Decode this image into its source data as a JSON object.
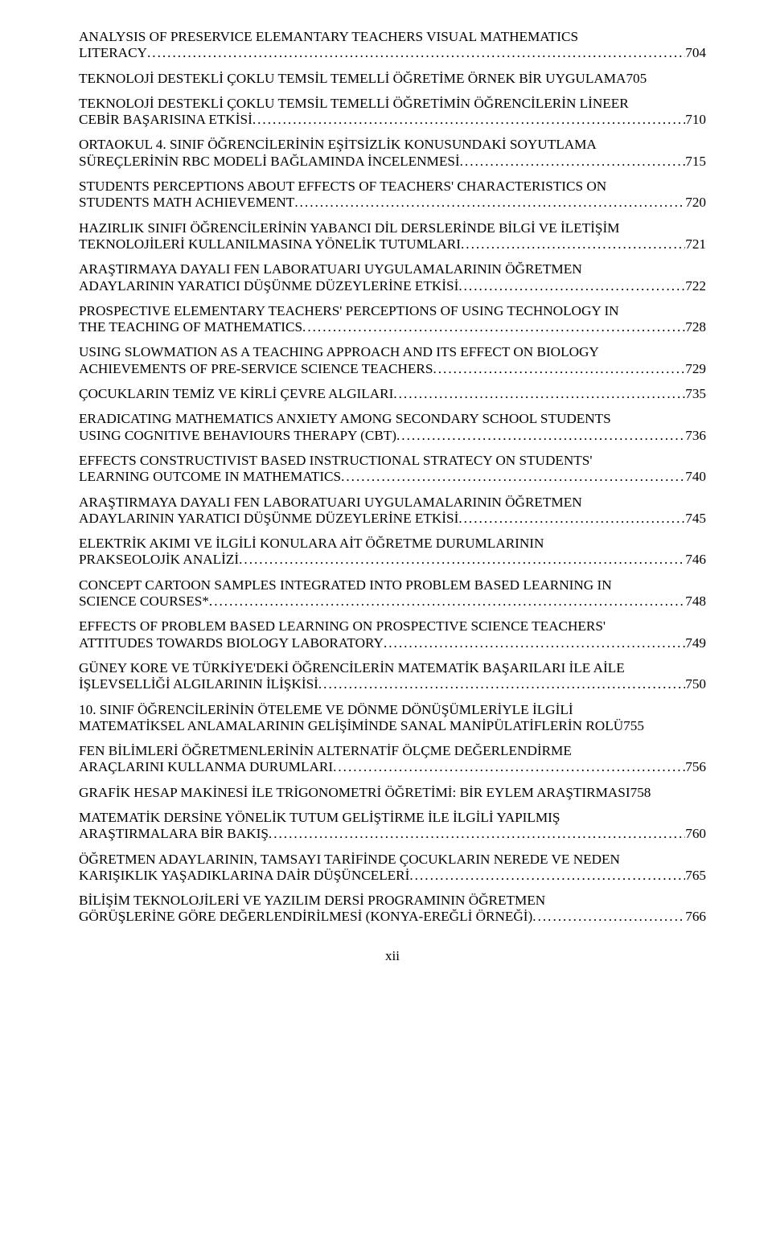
{
  "entries": [
    {
      "title_lines": [
        "ANALYSIS OF PRESERVICE ELEMANTARY TEACHERS VISUAL MATHEMATICS",
        "LITERACY"
      ],
      "page": "704"
    },
    {
      "title_lines": [
        "TEKNOLOJİ DESTEKLİ ÇOKLU TEMSİL TEMELLİ ÖĞRETİME ÖRNEK BİR UYGULAMA"
      ],
      "page": "705",
      "nodots": true
    },
    {
      "title_lines": [
        "TEKNOLOJİ DESTEKLİ ÇOKLU TEMSİL TEMELLİ ÖĞRETİMİN ÖĞRENCİLERİN LİNEER",
        "CEBİR BAŞARISINA ETKİSİ"
      ],
      "page": "710"
    },
    {
      "title_lines": [
        "ORTAOKUL 4. SINIF ÖĞRENCİLERİNİN EŞİTSİZLİK KONUSUNDAKİ SOYUTLAMA",
        "SÜREÇLERİNİN RBC MODELİ BAĞLAMINDA İNCELENMESİ"
      ],
      "page": "715"
    },
    {
      "title_lines": [
        "STUDENTS PERCEPTIONS ABOUT EFFECTS OF TEACHERS' CHARACTERISTICS ON",
        "STUDENTS MATH ACHIEVEMENT"
      ],
      "page": "720"
    },
    {
      "title_lines": [
        "HAZIRLIK SINIFI ÖĞRENCİLERİNİN YABANCI DİL DERSLERİNDE BİLGİ VE İLETİŞİM",
        "TEKNOLOJİLERİ KULLANILMASINA YÖNELİK TUTUMLARI"
      ],
      "page": "721"
    },
    {
      "title_lines": [
        "ARAŞTIRMAYA DAYALI FEN LABORATUARI UYGULAMALARININ ÖĞRETMEN",
        "ADAYLARININ YARATICI DÜŞÜNME DÜZEYLERİNE ETKİSİ"
      ],
      "page": "722"
    },
    {
      "title_lines": [
        "PROSPECTIVE ELEMENTARY TEACHERS' PERCEPTIONS OF USING TECHNOLOGY IN",
        "THE TEACHING OF MATHEMATICS"
      ],
      "page": "728"
    },
    {
      "title_lines": [
        "USING SLOWMATION AS A TEACHING APPROACH AND ITS EFFECT ON BIOLOGY",
        "ACHIEVEMENTS OF PRE-SERVICE SCIENCE TEACHERS"
      ],
      "page": "729"
    },
    {
      "title_lines": [
        "ÇOCUKLARIN TEMİZ VE KİRLİ ÇEVRE ALGILARI"
      ],
      "page": "735"
    },
    {
      "title_lines": [
        "ERADICATING MATHEMATICS ANXIETY AMONG SECONDARY SCHOOL STUDENTS",
        "USING COGNITIVE BEHAVIOURS THERAPY (CBT)"
      ],
      "page": "736"
    },
    {
      "title_lines": [
        "EFFECTS CONSTRUCTIVIST BASED INSTRUCTIONAL STRATECY ON STUDENTS'",
        "LEARNING OUTCOME IN MATHEMATICS"
      ],
      "page": "740"
    },
    {
      "title_lines": [
        "ARAŞTIRMAYA DAYALI FEN LABORATUARI UYGULAMALARININ ÖĞRETMEN",
        "ADAYLARININ YARATICI DÜŞÜNME DÜZEYLERİNE ETKİSİ"
      ],
      "page": "745"
    },
    {
      "title_lines": [
        "ELEKTRİK AKIMI VE İLGİLİ KONULARA AİT ÖĞRETME DURUMLARININ",
        "PRAKSEOLOJİK ANALİZİ"
      ],
      "page": "746"
    },
    {
      "title_lines": [
        "CONCEPT CARTOON SAMPLES INTEGRATED INTO PROBLEM BASED LEARNING IN",
        "SCIENCE COURSES*"
      ],
      "page": "748"
    },
    {
      "title_lines": [
        "EFFECTS OF PROBLEM BASED LEARNING ON PROSPECTIVE SCIENCE TEACHERS'",
        "ATTITUDES TOWARDS BIOLOGY LABORATORY"
      ],
      "page": "749"
    },
    {
      "title_lines": [
        "GÜNEY KORE VE TÜRKİYE'DEKİ ÖĞRENCİLERİN MATEMATİK BAŞARILARI İLE AİLE",
        "İŞLEVSELLİĞİ ALGILARININ İLİŞKİSİ"
      ],
      "page": "750"
    },
    {
      "title_lines": [
        "10. SINIF ÖĞRENCİLERİNİN ÖTELEME VE DÖNME DÖNÜŞÜMLERİYLE İLGİLİ",
        "MATEMATİKSEL ANLAMALARININ GELİŞİMİNDE SANAL MANİPÜLATİFLERİN ROLÜ"
      ],
      "page": "755",
      "nodots": true
    },
    {
      "title_lines": [
        "FEN BİLİMLERİ ÖĞRETMENLERİNİN ALTERNATİF ÖLÇME DEĞERLENDİRME",
        "ARAÇLARINI KULLANMA DURUMLARI"
      ],
      "page": "756"
    },
    {
      "title_lines": [
        "GRAFİK HESAP MAKİNESİ İLE TRİGONOMETRİ ÖĞRETİMİ: BİR EYLEM ARAŞTIRMASI"
      ],
      "page": "758",
      "nodots": true
    },
    {
      "title_lines": [
        "MATEMATİK DERSİNE YÖNELİK TUTUM GELİŞTİRME İLE İLGİLİ YAPILMIŞ",
        "ARAŞTIRMALARA BİR BAKIŞ"
      ],
      "page": "760"
    },
    {
      "title_lines": [
        "ÖĞRETMEN ADAYLARININ, TAMSAYI TARİFİNDE ÇOCUKLARIN NEREDE VE NEDEN",
        "KARIŞIKLIK YAŞADIKLARINA DAİR DÜŞÜNCELERİ"
      ],
      "page": "765"
    },
    {
      "title_lines": [
        "BİLİŞİM TEKNOLOJİLERİ VE YAZILIM DERSİ PROGRAMININ ÖĞRETMEN",
        "GÖRÜŞLERİNE GÖRE DEĞERLENDİRİLMESİ (KONYA-EREĞLİ ÖRNEĞİ)"
      ],
      "page": "766"
    }
  ],
  "dots": "........................................................................................................................................................................................................",
  "page_label": "xii"
}
